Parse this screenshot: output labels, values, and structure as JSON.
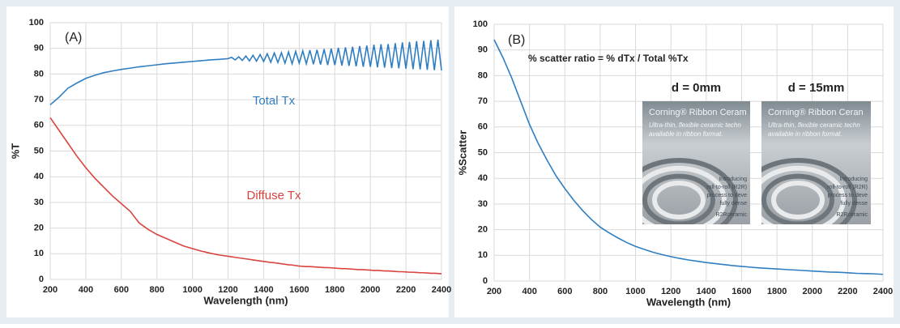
{
  "chart_data": [
    {
      "type": "line",
      "xlabel": "Wavelength (nm)",
      "ylabel": "%T",
      "annotations": [
        {
          "text": "(A)",
          "color": "#222222"
        },
        {
          "text": "Total Tx",
          "color": "#2f7ec1"
        },
        {
          "text": "Diffuse Tx",
          "color": "#d9443f"
        }
      ],
      "x": [
        200,
        250,
        300,
        350,
        400,
        450,
        500,
        550,
        600,
        650,
        700,
        750,
        800,
        850,
        900,
        950,
        1000,
        1050,
        1100,
        1150,
        1200,
        1220,
        1240,
        1260,
        1280,
        1300,
        1320,
        1340,
        1360,
        1380,
        1400,
        1420,
        1440,
        1460,
        1480,
        1500,
        1520,
        1540,
        1560,
        1580,
        1600,
        1620,
        1640,
        1660,
        1680,
        1700,
        1720,
        1740,
        1760,
        1780,
        1800,
        1820,
        1840,
        1860,
        1880,
        1900,
        1920,
        1940,
        1960,
        1980,
        2000,
        2020,
        2040,
        2060,
        2080,
        2100,
        2120,
        2140,
        2160,
        2180,
        2200,
        2220,
        2240,
        2260,
        2280,
        2300,
        2320,
        2340,
        2360,
        2380,
        2400
      ],
      "series": [
        {
          "name": "Total Tx",
          "color": "#2f7ec1",
          "values": [
            68,
            71,
            74.5,
            76.5,
            78.3,
            79.5,
            80.5,
            81.2,
            81.8,
            82.3,
            82.8,
            83.2,
            83.6,
            84,
            84.3,
            84.6,
            84.9,
            85.2,
            85.5,
            85.7,
            86.0,
            86.5,
            85.5,
            86.7,
            85.3,
            87.0,
            85.1,
            87.3,
            85.0,
            87.6,
            84.9,
            87.9,
            84.6,
            88.2,
            84.5,
            88.3,
            84.2,
            88.6,
            84.0,
            88.8,
            84.2,
            89.0,
            84.0,
            89.3,
            83.8,
            89.4,
            83.7,
            89.7,
            83.5,
            89.9,
            83.5,
            90.2,
            83.3,
            90.4,
            83.2,
            90.6,
            83.0,
            90.9,
            82.8,
            91.1,
            82.8,
            91.4,
            82.6,
            91.6,
            82.5,
            91.7,
            82.3,
            92.0,
            82.2,
            92.3,
            82.1,
            92.5,
            81.9,
            92.8,
            81.8,
            92.9,
            81.6,
            93.2,
            81.5,
            93.4,
            81.4
          ]
        },
        {
          "name": "Diffuse Tx",
          "color": "#d9443f",
          "values": [
            63,
            58,
            53,
            48,
            43.5,
            39.5,
            36,
            32.5,
            29.5,
            26.5,
            22,
            19.5,
            17.5,
            16,
            14.5,
            13,
            12,
            11,
            10.2,
            9.5,
            9,
            8.8,
            8.6,
            8.4,
            8.2,
            8.0,
            7.8,
            7.6,
            7.4,
            7.2,
            7.0,
            6.8,
            6.6,
            6.5,
            6.3,
            6.1,
            5.9,
            5.7,
            5.6,
            5.4,
            5.2,
            5.1,
            5.0,
            5.0,
            4.9,
            4.8,
            4.7,
            4.6,
            4.6,
            4.5,
            4.4,
            4.3,
            4.2,
            4.2,
            4.1,
            4.0,
            3.9,
            3.8,
            3.8,
            3.7,
            3.6,
            3.5,
            3.5,
            3.4,
            3.3,
            3.3,
            3.2,
            3.1,
            3.0,
            3.0,
            2.9,
            2.8,
            2.8,
            2.7,
            2.6,
            2.6,
            2.5,
            2.4,
            2.4,
            2.3,
            2.2
          ]
        }
      ],
      "xlim": [
        200,
        2400
      ],
      "xticks": [
        200,
        400,
        600,
        800,
        1000,
        1200,
        1400,
        1600,
        1800,
        2000,
        2200,
        2400
      ],
      "ylim": [
        0,
        100
      ],
      "yticks": [
        0,
        10,
        20,
        30,
        40,
        50,
        60,
        70,
        80,
        90,
        100
      ],
      "grid": true
    },
    {
      "type": "line",
      "xlabel": "Wavelength (nm)",
      "ylabel": "%Scatter",
      "annotations": [
        {
          "text": "(B)",
          "color": "#222222"
        },
        {
          "text": "% scatter ratio = % dTx / Total %Tx",
          "color": "#222222"
        }
      ],
      "insets": [
        {
          "label": "d = 0mm",
          "lines": [
            "Corning® Ribbon Ceram",
            "Ultra-thin, flexible ceramic techn",
            "available in ribbon format.",
            "Introducing",
            "roll-to-roll (R2R)",
            "process to deve",
            "fully dense",
            "R2Rceramic"
          ]
        },
        {
          "label": "d = 15mm",
          "lines": [
            "Corning® Ribbon Ceran",
            "Ultra-thin, flexible ceramic techn",
            "available in ribbon format.",
            "Introducing",
            "roll-to-roll (R2R)",
            "process to deve",
            "fully dense",
            "R2Rceramic"
          ]
        }
      ],
      "x": [
        200,
        250,
        300,
        350,
        400,
        450,
        500,
        550,
        600,
        650,
        700,
        750,
        800,
        850,
        900,
        950,
        1000,
        1050,
        1100,
        1150,
        1200,
        1250,
        1300,
        1350,
        1400,
        1450,
        1500,
        1550,
        1600,
        1650,
        1700,
        1750,
        1800,
        1850,
        1900,
        1950,
        2000,
        2050,
        2100,
        2150,
        2200,
        2250,
        2300,
        2350,
        2400
      ],
      "series": [
        {
          "name": "% scatter ratio",
          "color": "#2f7ec1",
          "values": [
            94,
            87,
            79,
            70,
            61,
            53.5,
            47,
            41,
            36,
            31.5,
            27.5,
            24,
            21,
            18.8,
            16.8,
            15,
            13.5,
            12.3,
            11.2,
            10.3,
            9.5,
            8.8,
            8.2,
            7.7,
            7.2,
            6.8,
            6.4,
            6.0,
            5.7,
            5.4,
            5.1,
            4.9,
            4.7,
            4.5,
            4.3,
            4.1,
            3.9,
            3.7,
            3.5,
            3.4,
            3.2,
            3.0,
            2.9,
            2.8,
            2.6
          ]
        }
      ],
      "xlim": [
        200,
        2400
      ],
      "xticks": [
        200,
        400,
        600,
        800,
        1000,
        1200,
        1400,
        1600,
        1800,
        2000,
        2200,
        2400
      ],
      "ylim": [
        0,
        100
      ],
      "yticks": [
        0,
        10,
        20,
        30,
        40,
        50,
        60,
        70,
        80,
        90,
        100
      ],
      "grid": true
    }
  ]
}
